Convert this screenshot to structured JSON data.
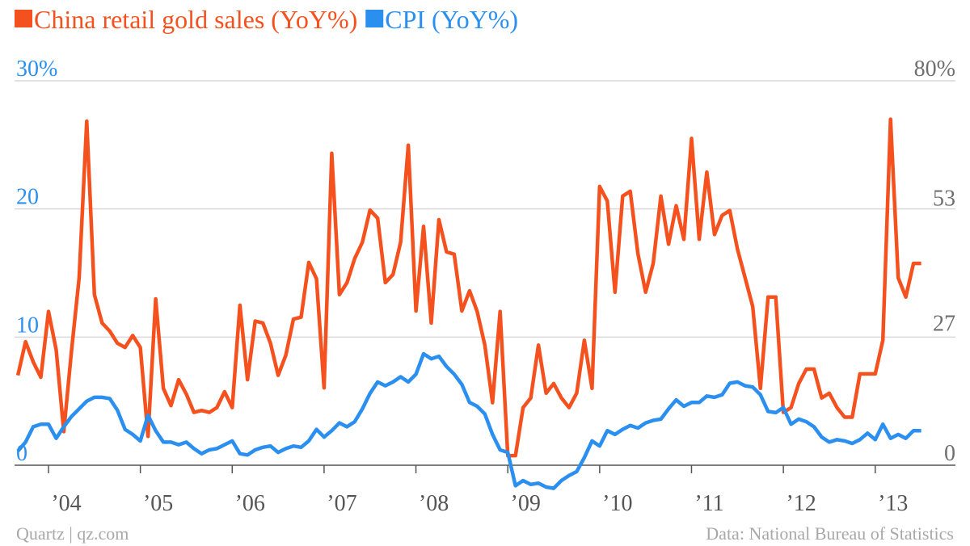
{
  "chart_data": {
    "type": "line",
    "credit": "Quartz | qz.com",
    "source": "Data: National Bureau of Statistics",
    "categories": [
      null,
      null,
      null,
      null,
      "’04",
      null,
      null,
      null,
      null,
      null,
      null,
      null,
      null,
      null,
      null,
      null,
      "’05",
      null,
      null,
      null,
      null,
      null,
      null,
      null,
      null,
      null,
      null,
      null,
      "’06",
      null,
      null,
      null,
      null,
      null,
      null,
      null,
      null,
      null,
      null,
      null,
      "’07",
      null,
      null,
      null,
      null,
      null,
      null,
      null,
      null,
      null,
      null,
      null,
      "’08",
      null,
      null,
      null,
      null,
      null,
      null,
      null,
      null,
      null,
      null,
      null,
      "’09",
      null,
      null,
      null,
      null,
      null,
      null,
      null,
      null,
      null,
      null,
      null,
      "’10",
      null,
      null,
      null,
      null,
      null,
      null,
      null,
      null,
      null,
      null,
      null,
      "’11",
      null,
      null,
      null,
      null,
      null,
      null,
      null,
      null,
      null,
      null,
      null,
      "’12",
      null,
      null,
      null,
      null,
      null,
      null,
      null,
      null,
      null,
      null,
      null,
      "’13",
      null,
      null,
      null,
      null,
      null,
      null
    ],
    "series": [
      {
        "name": "China retail gold sales (YoY%)",
        "color": "#f4511e",
        "axis": "y2",
        "values": [
          18.7,
          25.7,
          21.5,
          18.3,
          32,
          24,
          7,
          23.7,
          39,
          71.6,
          35.5,
          29.6,
          27.9,
          25.4,
          24.5,
          27,
          24.5,
          6,
          34.6,
          16,
          12.4,
          17.8,
          14.8,
          11,
          11.4,
          11,
          12,
          15.3,
          12,
          33.3,
          17.8,
          30,
          29.6,
          25.4,
          18.7,
          22.9,
          30.4,
          30.8,
          42.2,
          38.8,
          16.1,
          64.9,
          35.5,
          38,
          43,
          46.4,
          53.1,
          51.4,
          38,
          39.7,
          46.4,
          66.6,
          32.1,
          49.7,
          29.6,
          51.1,
          44.4,
          43.9,
          32.1,
          36.3,
          32,
          25,
          13,
          32,
          2,
          2,
          12,
          14,
          25,
          15,
          17,
          14,
          12,
          15,
          26,
          16,
          58,
          55,
          36,
          56,
          57,
          44,
          36,
          42,
          56,
          46,
          54,
          47,
          68,
          47,
          61,
          48,
          52,
          53,
          45,
          39,
          33,
          16,
          35,
          35,
          11,
          12,
          17,
          20,
          20,
          14,
          15,
          12,
          10,
          10,
          19,
          19,
          19,
          26,
          72,
          39,
          35,
          42,
          42
        ]
      },
      {
        "name": "CPI (YoY%)",
        "color": "#2b8ff0",
        "values": [
          1.1,
          1.8,
          3.0,
          3.2,
          3.2,
          2.1,
          3.0,
          3.8,
          4.4,
          5.0,
          5.3,
          5.3,
          5.2,
          4.3,
          2.8,
          2.4,
          1.9,
          3.9,
          2.7,
          1.8,
          1.8,
          1.6,
          1.8,
          1.3,
          0.9,
          1.2,
          1.3,
          1.6,
          1.9,
          0.9,
          0.8,
          1.2,
          1.4,
          1.5,
          1.0,
          1.3,
          1.5,
          1.4,
          1.9,
          2.8,
          2.2,
          2.7,
          3.3,
          3.0,
          3.4,
          4.4,
          5.6,
          6.5,
          6.2,
          6.5,
          6.9,
          6.5,
          7.1,
          8.7,
          8.3,
          8.5,
          7.7,
          7.1,
          6.3,
          4.9,
          4.6,
          4.0,
          2.4,
          1.2,
          1.0,
          -1.6,
          -1.2,
          -1.5,
          -1.4,
          -1.7,
          -1.8,
          -1.2,
          -0.8,
          -0.5,
          0.6,
          1.9,
          1.5,
          2.7,
          2.4,
          2.8,
          3.1,
          2.9,
          3.3,
          3.5,
          3.6,
          4.4,
          5.1,
          4.6,
          4.9,
          4.9,
          5.4,
          5.3,
          5.5,
          6.4,
          6.5,
          6.2,
          6.1,
          5.5,
          4.2,
          4.1,
          4.5,
          3.2,
          3.6,
          3.4,
          3.0,
          2.2,
          1.8,
          2.0,
          1.9,
          1.7,
          2.0,
          2.5,
          2.0,
          3.2,
          2.1,
          2.4,
          2.1,
          2.7,
          2.7
        ]
      }
    ],
    "ylim": [
      0,
      30
    ],
    "yticks": [
      0,
      10,
      20,
      {
        "value": 30,
        "label": "30%"
      }
    ],
    "y2lim": [
      0,
      80
    ],
    "y2ticks": [
      0,
      27,
      53,
      {
        "value": 80,
        "label": "80%"
      }
    ],
    "grid": true
  }
}
